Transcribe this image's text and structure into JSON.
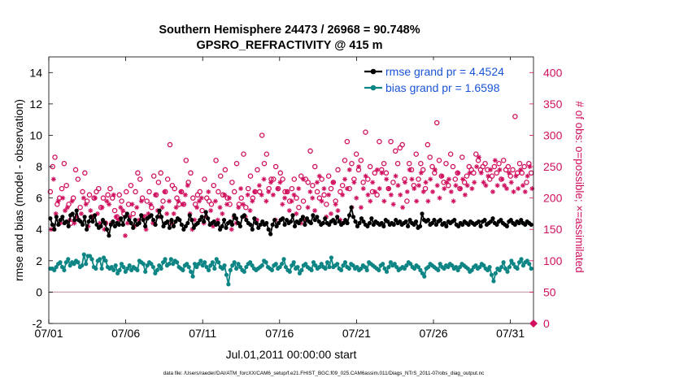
{
  "chart_data": {
    "type": "line",
    "title_line1": "Southern Hemisphere 24473 / 26968 = 90.748%",
    "title_line2": "GPSRO_REFRACTIVITY @ 415 m",
    "xlabel": "Jul.01,2011 00:00:00 start",
    "ylabel_left": "rmse and bias (model - observation)",
    "ylabel_right": "# of obs: o=possible; ×=assimilated",
    "footer": "data file: /Users/raeder/DAI/ATM_forcXX/CAM6_setup/f.e21.FHIST_BGC.f09_025.CAM6assim.011/Diags_NTrS_2011-07/obs_diag_output.nc",
    "xlim": [
      0,
      31.5
    ],
    "ylim_left": [
      -2,
      15
    ],
    "ylim_right": [
      0,
      425
    ],
    "x_ticks": [
      {
        "x": 0,
        "label": "07/01"
      },
      {
        "x": 5,
        "label": "07/06"
      },
      {
        "x": 10,
        "label": "07/11"
      },
      {
        "x": 15,
        "label": "07/16"
      },
      {
        "x": 20,
        "label": "07/21"
      },
      {
        "x": 25,
        "label": "07/26"
      },
      {
        "x": 30,
        "label": "07/31"
      }
    ],
    "y_ticks_left": [
      {
        "v": -2,
        "label": "-2"
      },
      {
        "v": 0,
        "label": "0"
      },
      {
        "v": 2,
        "label": "2"
      },
      {
        "v": 4,
        "label": "4"
      },
      {
        "v": 6,
        "label": "6"
      },
      {
        "v": 8,
        "label": "8"
      },
      {
        "v": 10,
        "label": "10"
      },
      {
        "v": 12,
        "label": "12"
      },
      {
        "v": 14,
        "label": "14"
      }
    ],
    "y_ticks_right": [
      {
        "v": 0,
        "label": "0"
      },
      {
        "v": 50,
        "label": "50"
      },
      {
        "v": 100,
        "label": "100"
      },
      {
        "v": 150,
        "label": "150"
      },
      {
        "v": 200,
        "label": "200"
      },
      {
        "v": 250,
        "label": "250"
      },
      {
        "v": 300,
        "label": "300"
      },
      {
        "v": 350,
        "label": "350"
      },
      {
        "v": 400,
        "label": "400"
      }
    ],
    "legend": [
      {
        "label": "rmse grand pr = 4.4524",
        "color": "#000000"
      },
      {
        "label": "bias grand pr = 1.6598",
        "color": "#0e8585"
      }
    ],
    "series": [
      {
        "name": "rmse",
        "color": "#000000",
        "values": [
          4.7,
          4.3,
          4.0,
          4.8,
          4.3,
          4.6,
          4.8,
          4.4,
          4.5,
          4.2,
          4.9,
          5.0,
          4.6,
          5.2,
          4.6,
          4.5,
          4.3,
          4.8,
          4.0,
          4.5,
          4.8,
          4.5,
          4.9,
          4.3,
          4.1,
          4.2,
          4.6,
          4.4,
          4.0,
          3.6,
          4.3,
          4.5,
          4.2,
          4.4,
          4.3,
          4.7,
          4.3,
          4.8,
          5.0,
          4.6,
          4.4,
          4.1,
          4.6,
          4.3,
          4.4,
          4.9,
          4.6,
          4.2,
          4.7,
          4.8,
          4.9,
          4.6,
          4.3,
          4.8,
          5.2,
          4.8,
          4.2,
          4.4,
          4.5,
          4.1,
          4.6,
          4.2,
          4.5,
          4.7,
          4.6,
          4.3,
          4.0,
          4.2,
          4.4,
          4.9,
          4.6,
          4.1,
          4.3,
          4.4,
          4.6,
          4.8,
          4.5,
          5.1,
          4.7,
          4.3,
          4.4,
          4.5,
          4.3,
          4.4,
          4.0,
          4.2,
          4.6,
          4.1,
          4.4,
          4.5,
          4.3,
          4.9,
          4.7,
          4.4,
          4.2,
          4.8,
          4.9,
          4.6,
          4.4,
          4.3,
          4.0,
          4.7,
          4.4,
          4.1,
          4.3,
          4.5,
          4.3,
          4.4,
          4.0,
          3.7,
          4.3,
          4.6,
          4.2,
          4.4,
          4.6,
          4.7,
          4.3,
          4.6,
          4.4,
          4.5,
          4.9,
          4.2,
          4.5,
          4.4,
          4.6,
          4.8,
          4.3,
          4.7,
          4.5,
          4.4,
          4.9,
          4.6,
          4.8,
          4.5,
          4.3,
          4.4,
          4.7,
          4.4,
          4.3,
          4.5,
          4.6,
          4.4,
          4.8,
          4.5,
          4.3,
          4.4,
          4.6,
          4.4,
          4.9,
          5.4,
          4.8,
          4.5,
          4.2,
          4.4,
          4.7,
          4.5,
          4.3,
          4.2,
          4.4,
          4.7,
          4.3,
          4.5,
          4.4,
          4.3,
          4.4,
          4.2,
          4.6,
          4.5,
          4.3,
          4.4,
          4.3,
          4.6,
          4.4,
          4.5,
          4.3,
          4.4,
          4.5,
          4.2,
          4.6,
          4.4,
          4.3,
          4.5,
          4.1,
          4.2,
          5.0,
          4.6,
          4.5,
          4.6,
          4.3,
          4.4,
          4.6,
          4.3,
          4.5,
          4.6,
          4.3,
          4.4,
          4.2,
          4.5,
          4.4,
          4.5,
          4.6,
          4.3,
          4.2,
          4.4,
          4.3,
          4.5,
          4.4,
          4.3,
          4.5,
          4.4,
          4.3,
          4.4,
          4.5,
          4.2,
          4.5,
          4.6,
          4.3,
          4.4,
          4.5,
          4.7,
          4.4,
          4.3,
          4.5,
          4.6,
          4.4,
          4.3,
          4.2,
          4.5,
          4.6,
          4.4,
          4.3,
          4.5,
          4.4,
          4.6,
          4.4,
          4.3,
          4.5,
          4.4,
          4.3
        ]
      },
      {
        "name": "bias",
        "color": "#0e8585",
        "values": [
          1.5,
          1.5,
          1.4,
          1.6,
          1.8,
          1.9,
          1.6,
          1.4,
          1.9,
          2.1,
          1.7,
          1.9,
          1.8,
          2.0,
          1.9,
          1.6,
          1.7,
          2.4,
          1.8,
          2.3,
          2.3,
          2.1,
          1.6,
          1.5,
          2.0,
          2.1,
          1.5,
          2.2,
          2.0,
          1.6,
          1.5,
          1.6,
          1.4,
          1.7,
          1.2,
          1.4,
          1.8,
          1.6,
          1.3,
          1.5,
          1.7,
          1.4,
          1.6,
          1.5,
          1.4,
          2.0,
          1.9,
          1.8,
          1.3,
          1.7,
          1.9,
          1.8,
          1.6,
          1.2,
          1.4,
          1.7,
          1.5,
          1.9,
          2.1,
          1.7,
          1.8,
          2.1,
          1.8,
          2.0,
          1.9,
          1.6,
          1.5,
          1.4,
          1.7,
          1.8,
          1.6,
          1.3,
          1.0,
          1.8,
          1.6,
          1.8,
          2.0,
          1.7,
          1.9,
          1.6,
          1.4,
          1.7,
          1.9,
          1.5,
          2.1,
          1.9,
          1.6,
          1.5,
          1.7,
          1.1,
          0.5,
          1.4,
          1.7,
          1.9,
          1.5,
          1.8,
          1.6,
          1.4,
          1.3,
          1.6,
          1.8,
          1.9,
          1.7,
          1.5,
          1.4,
          1.5,
          1.6,
          1.7,
          2.0,
          1.9,
          1.6,
          1.5,
          1.4,
          1.7,
          1.8,
          1.5,
          1.6,
          1.8,
          2.1,
          1.6,
          1.4,
          1.3,
          1.7,
          1.9,
          1.5,
          1.6,
          1.2,
          1.4,
          1.7,
          1.8,
          1.6,
          1.5,
          1.4,
          1.9,
          1.7,
          1.5,
          1.6,
          1.8,
          1.6,
          1.5,
          1.9,
          1.6,
          2.2,
          1.6,
          1.7,
          1.8,
          1.5,
          1.4,
          1.7,
          1.9,
          1.6,
          1.5,
          1.8,
          1.7,
          1.5,
          1.6,
          1.4,
          1.5,
          1.7,
          1.6,
          1.4,
          1.9,
          1.8,
          1.7,
          1.6,
          1.5,
          1.4,
          1.7,
          1.8,
          1.5,
          1.3,
          1.6,
          1.9,
          1.7,
          1.8,
          1.6,
          1.4,
          1.5,
          1.6,
          1.5,
          1.7,
          1.9,
          1.8,
          1.6,
          1.5,
          1.7,
          1.6,
          1.4,
          1.2,
          1.0,
          1.5,
          1.6,
          1.8,
          1.7,
          1.6,
          1.5,
          1.4,
          1.8,
          1.6,
          1.5,
          1.7,
          1.6,
          1.8,
          1.7,
          1.5,
          1.6,
          1.4,
          1.6,
          1.8,
          1.7,
          1.6,
          1.5,
          1.3,
          1.4,
          1.6,
          1.7,
          1.5,
          1.6,
          1.8,
          1.7,
          1.5,
          1.4,
          1.6,
          1.1,
          0.7,
          1.2,
          1.5,
          1.4,
          1.6,
          1.9,
          1.5,
          1.3,
          1.6,
          2.0,
          1.8,
          1.6,
          1.5,
          1.9,
          2.1,
          1.7,
          1.9,
          2.0,
          1.8,
          1.5
        ]
      },
      {
        "name": "possible",
        "color": "#d0105e",
        "values": [
          210,
          250,
          265,
          190,
          200,
          215,
          255,
          220,
          190,
          160,
          200,
          245,
          230,
          185,
          210,
          240,
          195,
          205,
          170,
          200,
          210,
          215,
          185,
          200,
          160,
          205,
          215,
          200,
          180,
          170,
          205,
          195,
          175,
          210,
          190,
          220,
          175,
          210,
          240,
          230,
          200,
          170,
          195,
          210,
          185,
          235,
          205,
          225,
          240,
          195,
          210,
          230,
          285,
          220,
          215,
          200,
          190,
          210,
          190,
          260,
          225,
          240,
          200,
          190,
          205,
          210,
          180,
          230,
          200,
          195,
          190,
          220,
          260,
          210,
          235,
          205,
          245,
          200,
          190,
          225,
          210,
          255,
          190,
          200,
          270,
          185,
          215,
          235,
          200,
          210,
          245,
          210,
          300,
          255,
          270,
          215,
          230,
          230,
          250,
          215,
          240,
          230,
          210,
          210,
          195,
          215,
          230,
          200,
          185,
          235,
          195,
          230,
          225,
          275,
          220,
          250,
          210,
          200,
          230,
          205,
          190,
          235,
          215,
          225,
          195,
          245,
          210,
          220,
          260,
          290,
          215,
          255,
          230,
          270,
          245,
          260,
          225,
          305,
          230,
          250,
          210,
          240,
          205,
          290,
          245,
          255,
          240,
          215,
          290,
          225,
          275,
          255,
          280,
          285,
          230,
          195,
          255,
          245,
          220,
          270,
          230,
          255,
          245,
          215,
          285,
          265,
          250,
          240,
          320,
          260,
          235,
          225,
          255,
          220,
          270,
          250,
          230,
          240,
          215,
          265,
          225,
          235,
          250,
          245,
          240,
          270,
          260,
          245,
          250,
          255,
          245,
          230,
          235,
          250,
          240,
          255,
          230,
          260,
          245,
          250,
          235,
          245,
          330,
          240,
          255,
          240,
          250,
          225,
          255,
          240
        ]
      },
      {
        "name": "assimilated",
        "color": "#d0105e",
        "values": [
          150,
          230,
          175,
          195,
          160,
          200,
          180,
          185,
          165,
          195,
          160,
          170,
          165,
          175,
          200,
          190,
          155,
          180,
          170,
          200,
          175,
          160,
          185,
          150,
          195,
          190,
          160,
          205,
          170,
          165,
          185,
          180,
          140,
          160,
          170,
          190,
          155,
          185,
          165,
          195,
          170,
          150,
          175,
          190,
          160,
          205,
          180,
          170,
          185,
          210,
          175,
          195,
          160,
          175,
          185,
          195,
          210,
          190,
          205,
          220,
          175,
          150,
          165,
          185,
          195,
          200,
          160,
          170,
          210,
          180,
          155,
          195,
          165,
          185,
          175,
          205,
          190,
          200,
          150,
          170,
          160,
          185,
          215,
          190,
          170,
          205,
          180,
          195,
          210,
          165,
          220,
          205,
          230,
          195,
          210,
          225,
          205,
          165,
          215,
          225,
          190,
          200,
          210,
          180,
          195,
          205,
          175,
          215,
          160,
          230,
          165,
          185,
          210,
          200,
          180,
          225,
          235,
          195,
          215,
          170,
          205,
          175,
          225,
          190,
          180,
          165,
          205,
          230,
          215,
          245,
          185,
          225,
          200,
          250,
          185,
          215,
          235,
          205,
          195,
          225,
          210,
          245,
          215,
          240,
          195,
          230,
          215,
          205,
          190,
          235,
          220,
          205,
          185,
          225,
          210,
          245,
          230,
          215,
          195,
          220,
          240,
          210,
          225,
          195,
          230,
          210,
          245,
          220,
          200,
          235,
          215,
          225,
          230,
          210,
          195,
          220,
          240,
          215,
          230,
          205,
          220,
          240,
          215,
          225,
          250,
          265,
          240,
          225,
          220,
          235,
          245,
          210,
          260,
          220,
          245,
          230,
          220,
          215,
          240,
          225,
          210,
          235,
          215,
          245,
          220,
          210,
          235,
          250,
          215
        ]
      }
    ]
  }
}
